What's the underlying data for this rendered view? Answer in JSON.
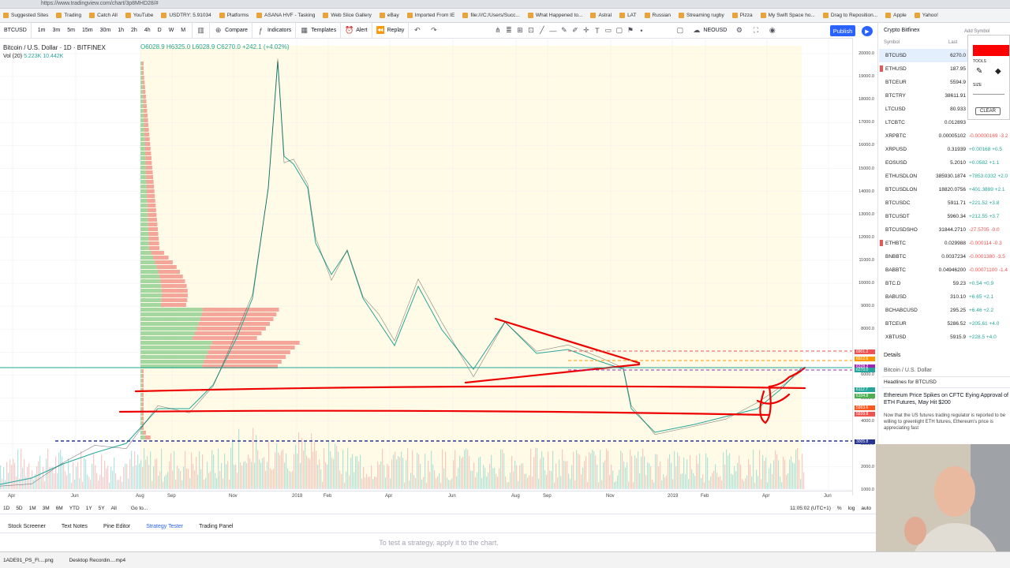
{
  "browser": {
    "url": "https://www.tradingview.com/chart/3p8MHD28/#"
  },
  "bookmarks": [
    "Suggested Sites",
    "Trading",
    "Catch All",
    "YouTube",
    "USDTRY: 5.91034",
    "Platforms",
    "ASANA HVF - Tasking",
    "Web Slice Gallery",
    "eBay",
    "Imported From IE",
    "file:///C:/Users/Succ...",
    "What Happened to...",
    "Astral",
    "LAT",
    "Russian",
    "Streaming rugby",
    "Pizza",
    "My Swift Space ho...",
    "Drag to Reposition...",
    "Apple",
    "Yahoo!"
  ],
  "toolbar": {
    "symbol": "BTCUSD",
    "intervals": [
      "1m",
      "3m",
      "5m",
      "15m",
      "30m",
      "1h",
      "2h",
      "4h",
      "D",
      "W",
      "M"
    ],
    "compare": "Compare",
    "indicators": "Indicators",
    "templates": "Templates",
    "alert": "Alert",
    "replay": "Replay",
    "right_symbol": "NEOUSD",
    "publish": "Publish"
  },
  "legend": {
    "title": "Bitcoin / U.S. Dollar · 1D · BITFINEX",
    "ohlc": "O6028.9 H6325.0 L6028.9 C6270.0 +242.1 (+4.02%)",
    "volume": "Vol (20)",
    "volume_values": "5.223K 10.442K"
  },
  "price_axis": [
    "20000.0",
    "19000.0",
    "18000.0",
    "17000.0",
    "16000.0",
    "15000.0",
    "14000.0",
    "13000.0",
    "12000.0",
    "11000.0",
    "10000.0",
    "9000.0",
    "8000.0",
    "7000.0",
    "6000.0",
    "5000.0",
    "4000.0",
    "3000.0",
    "2000.0",
    "1000.0"
  ],
  "price_tags": [
    {
      "label": "6901.2",
      "color": "#ef5350"
    },
    {
      "label": "6512.6",
      "color": "#ff9800"
    },
    {
      "label": "6328.2",
      "color": "#9c27b0"
    },
    {
      "label": "6270.0",
      "color": "#26a69a"
    },
    {
      "label": "6112.7",
      "color": "#26a69a"
    },
    {
      "label": "6104.8",
      "color": "#4caf50"
    },
    {
      "label": "5993.6",
      "color": "#ff5722"
    },
    {
      "label": "5939.8",
      "color": "#ef5350"
    },
    {
      "label": "3005.8",
      "color": "#283593"
    }
  ],
  "time_axis": [
    "Apr",
    "Jun",
    "Aug",
    "Sep",
    "Nov",
    "2018",
    "Feb",
    "Apr",
    "Jun",
    "Aug",
    "Sep",
    "Nov",
    "2019",
    "Feb",
    "Apr",
    "Jun"
  ],
  "range_bar": {
    "ranges": [
      "1D",
      "5D",
      "1M",
      "3M",
      "6M",
      "YTD",
      "1Y",
      "5Y",
      "All"
    ],
    "goto": "Go to...",
    "clock": "11:05:02 (UTC+1)",
    "pct": "%",
    "log": "log",
    "auto": "auto"
  },
  "bottom_tabs": [
    "Stock Screener",
    "Text Notes",
    "Pine Editor",
    "Strategy Tester",
    "Trading Panel"
  ],
  "active_tab": "Strategy Tester",
  "hint": "To test a strategy, apply it to the chart.",
  "taskbar": [
    "1ADE91_PS_Fl....png",
    "Desktop Recordin....mp4"
  ],
  "watchlist": {
    "title": "Crypto Bitfinex",
    "add_symbol": "Add Symbol",
    "col_symbol": "Symbol",
    "col_last": "Last",
    "rows": [
      {
        "sym": "BTCUSD",
        "last": "6270.0",
        "chg": "",
        "dir": "up",
        "sel": true,
        "flag": false
      },
      {
        "sym": "ETHUSD",
        "last": "187.95",
        "chg": "",
        "dir": "up",
        "sel": false,
        "flag": true
      },
      {
        "sym": "BTCEUR",
        "last": "5594.9",
        "chg": "",
        "dir": "up",
        "sel": false,
        "flag": false
      },
      {
        "sym": "BTCTRY",
        "last": "38611.91",
        "chg": "",
        "dir": "up",
        "sel": false,
        "flag": false
      },
      {
        "sym": "LTCUSD",
        "last": "80.933",
        "chg": "",
        "dir": "up",
        "sel": false,
        "flag": false
      },
      {
        "sym": "LTCBTC",
        "last": "0.012893",
        "chg": "",
        "dir": "dn",
        "sel": false,
        "flag": false
      },
      {
        "sym": "XRPBTC",
        "last": "0.00005102",
        "chg": "-0.00000169 -3.2",
        "dir": "dn",
        "sel": false,
        "flag": false
      },
      {
        "sym": "XRPUSD",
        "last": "0.31939",
        "chg": "+0.00168 +0.5",
        "dir": "up",
        "sel": false,
        "flag": false
      },
      {
        "sym": "EOSUSD",
        "last": "5.2010",
        "chg": "+0.0582 +1.1",
        "dir": "up",
        "sel": false,
        "flag": false
      },
      {
        "sym": "ETHUSDLON",
        "last": "385930.1874",
        "chg": "+7853.0332 +2.0",
        "dir": "up",
        "sel": false,
        "flag": false
      },
      {
        "sym": "BTCUSDLON",
        "last": "18820.0756",
        "chg": "+401.3889 +2.1",
        "dir": "up",
        "sel": false,
        "flag": false
      },
      {
        "sym": "BTCUSDC",
        "last": "5911.71",
        "chg": "+221.52 +3.8",
        "dir": "up",
        "sel": false,
        "flag": false
      },
      {
        "sym": "BTCUSDT",
        "last": "5960.34",
        "chg": "+212.55 +3.7",
        "dir": "up",
        "sel": false,
        "flag": false
      },
      {
        "sym": "BTCUSDSHO",
        "last": "31844.2710",
        "chg": "-27.5705 -0.0",
        "dir": "dn",
        "sel": false,
        "flag": false
      },
      {
        "sym": "ETHBTC",
        "last": "0.029988",
        "chg": "-0.000114 -0.3",
        "dir": "dn",
        "sel": false,
        "flag": true
      },
      {
        "sym": "BNBBTC",
        "last": "0.0037234",
        "chg": "-0.0001380 -3.5",
        "dir": "dn",
        "sel": false,
        "flag": false
      },
      {
        "sym": "BABBTC",
        "last": "0.04946200",
        "chg": "-0.00071100 -1.4",
        "dir": "dn",
        "sel": false,
        "flag": false
      },
      {
        "sym": "BTC.D",
        "last": "59.23",
        "chg": "+0.54 +0.9",
        "dir": "up",
        "sel": false,
        "flag": false
      },
      {
        "sym": "BABUSD",
        "last": "310.10",
        "chg": "+6.65 +2.1",
        "dir": "up",
        "sel": false,
        "flag": false
      },
      {
        "sym": "BCHABCUSD",
        "last": "295.25",
        "chg": "+6.46 +2.2",
        "dir": "up",
        "sel": false,
        "flag": false
      },
      {
        "sym": "BTCEUR",
        "last": "5286.52",
        "chg": "+205.61 +4.0",
        "dir": "up",
        "sel": false,
        "flag": false
      },
      {
        "sym": "XBTUSD",
        "last": "5915.9",
        "chg": "+228.5 +4.0",
        "dir": "up",
        "sel": false,
        "flag": false
      }
    ]
  },
  "details": {
    "label": "Details",
    "symbol_title": "Bitcoin / U.S. Dollar",
    "headlines": "Headlines for BTCUSD"
  },
  "news": {
    "title": "Ethereum Price Spikes on CFTC Eying Approval of ETH Futures, May Hit $200",
    "body": "Now that the US futures trading regulator is reported to be willing to greenlight ETH futures, Ethereum's price is appreciating fast"
  },
  "draw_panel": {
    "tools": "TOOLS",
    "size": "SIZE",
    "clear": "CLEAR",
    "color": "#ff0000"
  }
}
